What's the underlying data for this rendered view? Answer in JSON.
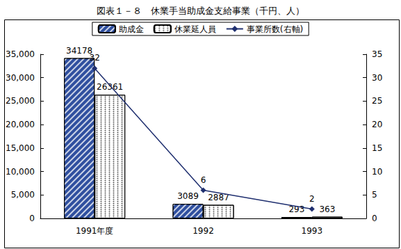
{
  "chart_data": {
    "type": "bar",
    "title": "図表１－８　休業手当助成金支給事業（千円、人）",
    "categories": [
      "1991年度",
      "1992",
      "1993"
    ],
    "series": [
      {
        "name": "助成金",
        "type": "bar",
        "color": "#2f4f9f",
        "values": [
          34178,
          3089,
          293
        ]
      },
      {
        "name": "休業延人員",
        "type": "bar",
        "color": "#ffffff",
        "values": [
          26361,
          2887,
          363
        ]
      },
      {
        "name": "事業所数(右軸)",
        "type": "line",
        "axis": "y2",
        "color": "#1f2f6f",
        "marker": "diamond",
        "values": [
          32,
          6,
          2
        ]
      }
    ],
    "ylim": [
      0,
      35000
    ],
    "yticks": [
      0,
      5000,
      10000,
      15000,
      20000,
      25000,
      30000,
      35000
    ],
    "y2lim": [
      0,
      35
    ],
    "y2ticks": [
      0,
      5,
      10,
      15,
      20,
      25,
      30,
      35
    ],
    "grid": false,
    "legend": "top",
    "data_labels": true
  }
}
